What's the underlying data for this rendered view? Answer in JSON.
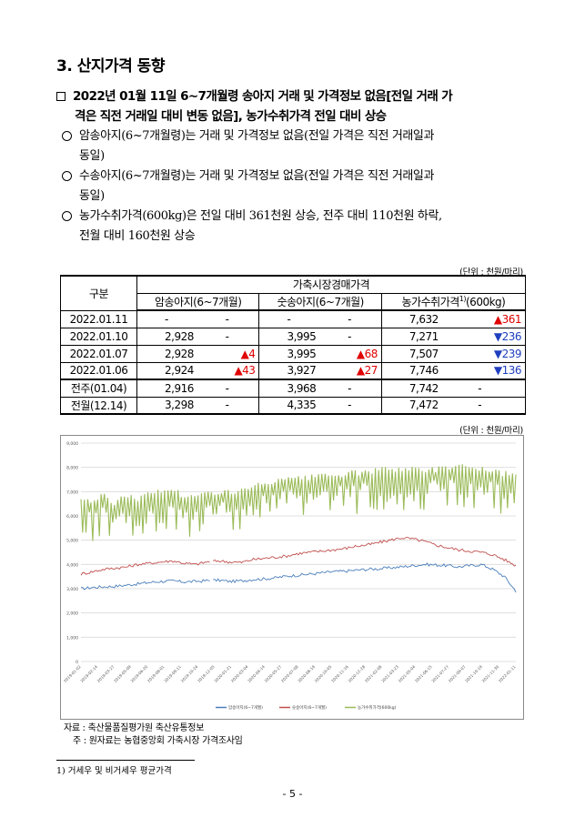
{
  "section_title": "3. 산지가격 동향",
  "headline_line1": "2022년 01월 11일 6~7개월령 송아지 거래 및 가격정보 없음[전일 거래 가",
  "headline_line2": "격은 직전 거래일 대비 변동 없음], 농가수취가격 전일 대비 상승",
  "bullets": [
    {
      "line1": "암송아지(6~7개월령)는 거래 및 가격정보 없음(전일 가격은 직전 거래일과",
      "line2": "동일)"
    },
    {
      "line1": "수송아지(6~7개월령)는 거래 및 가격정보 없음(전일 가격은 직전 거래일과",
      "line2": "동일)"
    },
    {
      "line1": "농가수취가격(600kg)은 전일 대비 361천원 상승, 전주 대비 110천원 하락,",
      "line2": "전월 대비 160천원 상승"
    }
  ],
  "unit_label": "(단위 : 천원/마리)",
  "table": {
    "col_gubun": "구분",
    "col_group": "가축시장경매가격",
    "col_female": "암송아지(6~7개월)",
    "col_male": "숫송아지(6~7개월)",
    "col_farm": "농가수취가격",
    "col_farm_sup": "1)",
    "col_farm_unit": "(600kg)",
    "rows": [
      {
        "label": "2022.01.11",
        "f": "-",
        "fc": "-",
        "m": "-",
        "mc": "-",
        "p": "7,632",
        "pc": "▲361",
        "pdir": "up"
      },
      {
        "label": "2022.01.10",
        "f": "2,928",
        "fc": "-",
        "m": "3,995",
        "mc": "-",
        "p": "7,271",
        "pc": "▼236",
        "pdir": "down"
      },
      {
        "label": "2022.01.07",
        "f": "2,928",
        "fc": "▲4",
        "m": "3,995",
        "mc": "▲68",
        "p": "7,507",
        "pc": "▼239",
        "pdir": "down"
      },
      {
        "label": "2022.01.06",
        "f": "2,924",
        "fc": "▲43",
        "m": "3,927",
        "mc": "▲27",
        "p": "7,746",
        "pc": "▼136",
        "pdir": "down"
      },
      {
        "label": "전주(01.04)",
        "f": "2,916",
        "fc": "-",
        "m": "3,968",
        "mc": "-",
        "p": "7,742",
        "pc": "-",
        "pdir": "none"
      },
      {
        "label": "전월(12.14)",
        "f": "3,298",
        "fc": "-",
        "m": "4,335",
        "mc": "-",
        "p": "7,472",
        "pc": "-",
        "pdir": "none"
      }
    ]
  },
  "chart_data": {
    "type": "line",
    "title": "",
    "xlabel": "",
    "ylabel": "",
    "ylim": [
      0,
      9000
    ],
    "y_ticks": [
      "0",
      "1,000",
      "2,000",
      "3,000",
      "4,000",
      "5,000",
      "6,000",
      "7,000",
      "8,000",
      "9,000"
    ],
    "x_ticks": [
      "2019-01-02",
      "2019-02-14",
      "2019-03-27",
      "2019-05-09",
      "2019-06-20",
      "2019-08-01",
      "2019-09-11",
      "2019-10-24",
      "2019-12-05",
      "2020-01-21",
      "2020-03-04",
      "2020-04-14",
      "2020-05-27",
      "2020-07-08",
      "2020-08-19",
      "2020-10-05",
      "2020-11-16",
      "2020-12-28",
      "2021-02-08",
      "2021-03-23",
      "2021-05-04",
      "2021-06-15",
      "2021-07-27",
      "2021-09-07",
      "2021-10-19",
      "2021-11-30",
      "2022-01-11"
    ],
    "grid": true,
    "legend": "bottom",
    "series": [
      {
        "name": "암송아지(6~7개월)",
        "color": "#4a7ebb",
        "values": [
          3000,
          3050,
          3080,
          3100,
          3150,
          3200,
          3260,
          3300,
          3320,
          3280,
          3300,
          3330,
          3350,
          3300,
          3320,
          3380,
          3400,
          3450,
          3520,
          3560,
          3600,
          3650,
          3700,
          3720,
          3760,
          3800,
          3820,
          3860,
          3900,
          3950,
          4000,
          3980,
          3950,
          3900,
          3950,
          4000,
          3800,
          3500,
          2900
        ]
      },
      {
        "name": "숫송아지(6~7개월)",
        "color": "#c0504d",
        "values": [
          3600,
          3700,
          3800,
          3850,
          3900,
          4000,
          4050,
          4100,
          4150,
          4050,
          4000,
          4100,
          4150,
          4100,
          4080,
          4200,
          4250,
          4300,
          4350,
          4450,
          4500,
          4550,
          4600,
          4650,
          4750,
          4800,
          4900,
          5000,
          5100,
          5050,
          4950,
          4800,
          4700,
          4600,
          4550,
          4500,
          4400,
          4200,
          3950
        ]
      },
      {
        "name": "농가수취가격(600kg)",
        "color": "#9bbb59",
        "values": [
          6600,
          6500,
          6700,
          6400,
          6750,
          6600,
          6800,
          6900,
          7000,
          6700,
          6650,
          6800,
          6900,
          6850,
          6900,
          7050,
          7200,
          7300,
          7350,
          7400,
          7450,
          7500,
          7550,
          7600,
          7650,
          7700,
          7750,
          7800,
          7850,
          7800,
          7750,
          7800,
          7900,
          8000,
          7900,
          7800,
          7750,
          7600,
          7632
        ]
      }
    ]
  },
  "source_line": "자료 : 축산물품질평가원 축산유통정보",
  "note_line": "주 : 원자료는 농협중앙회 가축시장 가격조사임",
  "footnote": "1) 거세우 및 비거세우 평균가격",
  "page_number": "- 5 -"
}
